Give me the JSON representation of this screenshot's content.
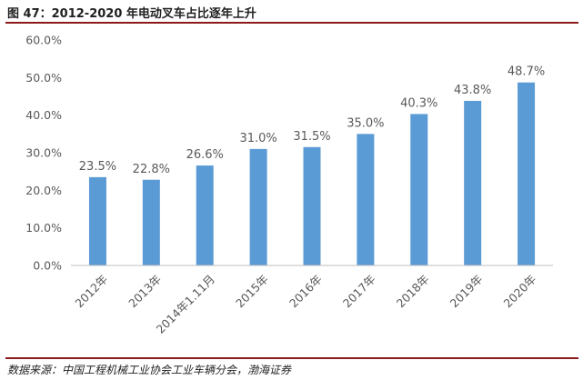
{
  "figure": {
    "title": "图 47：2012-2020 年电动叉车占比逐年上升",
    "source": "数据来源：中国工程机械工业协会工业车辆分会，渤海证券"
  },
  "colors": {
    "bar": "#5b9bd5",
    "rule": "#8b1a1a",
    "text": "#595959",
    "axis": "#bfbfbf"
  },
  "chart_data": {
    "type": "bar",
    "categories": [
      "2012年",
      "2013年",
      "2014年1.11月",
      "2015年",
      "2016年",
      "2017年",
      "2018年",
      "2019年",
      "2020年"
    ],
    "values": [
      23.5,
      22.8,
      26.6,
      31.0,
      31.5,
      35.0,
      40.3,
      43.8,
      48.7
    ],
    "value_labels": [
      "23.5%",
      "22.8%",
      "26.6%",
      "31.0%",
      "31.5%",
      "35.0%",
      "40.3%",
      "43.8%",
      "48.7%"
    ],
    "ylim": [
      0,
      60
    ],
    "yticks": [
      0,
      10,
      20,
      30,
      40,
      50,
      60
    ],
    "ytick_labels": [
      "0.0%",
      "10.0%",
      "20.0%",
      "30.0%",
      "40.0%",
      "50.0%",
      "60.0%"
    ],
    "grid": false,
    "legend": "none"
  }
}
